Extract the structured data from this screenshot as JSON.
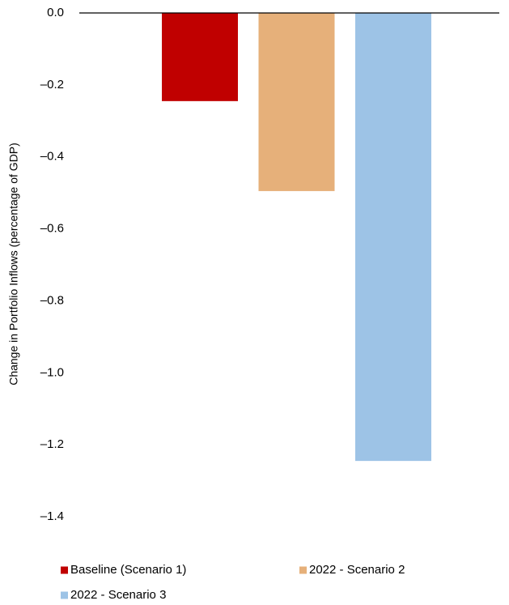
{
  "chart_data": {
    "type": "bar",
    "y_label": "Change in Portfolio Inflows (percentage of GDP)",
    "series": [
      {
        "name": "Baseline (Scenario 1)",
        "color": "#c00000",
        "values": [
          -0.245
        ]
      },
      {
        "name": "2022 - Scenario 2",
        "color": "#e6b07a",
        "values": [
          -0.495
        ]
      },
      {
        "name": "2022 - Scenario 3",
        "color": "#9dc3e6",
        "values": [
          -1.245
        ]
      }
    ],
    "ylim": [
      -1.4,
      0
    ],
    "yticks": [
      {
        "value": 0,
        "label": "0.0"
      },
      {
        "value": -0.2,
        "label": "–0.2"
      },
      {
        "value": -0.4,
        "label": "–0.4"
      },
      {
        "value": -0.6,
        "label": "–0.6"
      },
      {
        "value": -0.8,
        "label": "–0.8"
      },
      {
        "value": -1.0,
        "label": "–1.0"
      },
      {
        "value": -1.2,
        "label": "–1.2"
      },
      {
        "value": -1.4,
        "label": "–1.4"
      }
    ],
    "grid": false
  }
}
